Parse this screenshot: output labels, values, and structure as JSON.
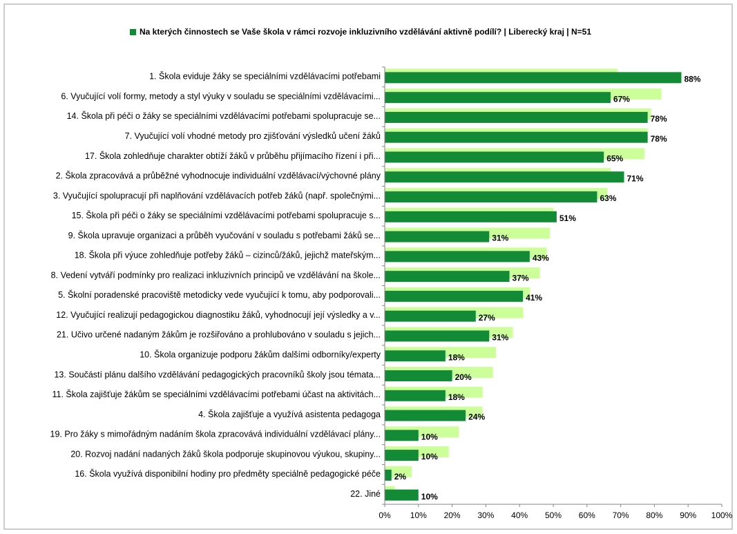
{
  "chart_data": {
    "type": "bar",
    "orientation": "horizontal",
    "categories": [
      "1. Škola eviduje žáky se speciálními vzdělávacími potřebami",
      "6. Vyučující volí formy, metody a styl výuky v souladu se speciálními vzdělávacími...",
      "14. Škola při péči o žáky se speciálními vzdělávacími potřebami spolupracuje se...",
      "7. Vyučující volí vhodné metody pro zjišťování výsledků učení žáků",
      "17. Škola zohledňuje charakter obtíží žáků v průběhu přijímacího řízení i při...",
      "2. Škola zpracovává a průběžné vyhodnocuje individuální vzdělávací/výchovné plány",
      "3. Vyučující spolupracují při naplňování vzdělávacích potřeb žáků (např. společnými...",
      "15. Škola při péči o žáky se speciálními vzdělávacími potřebami spolupracuje s...",
      "9. Škola upravuje organizaci a průběh vyučování v souladu s potřebami žáků se...",
      "18. Škola při výuce zohledňuje potřeby žáků – cizinců/žáků, jejichž mateřským...",
      "8. Vedení vytváří podmínky pro realizaci inkluzivních principů ve vzdělávání na škole...",
      "5. Školní poradenské pracoviště metodicky vede vyučující k tomu, aby podporovali...",
      "12. Vyučující realizují pedagogickou diagnostiku žáků, vyhodnocují její výsledky a v...",
      "21. Učivo určené nadaným žákům je rozšiřováno a prohlubováno v souladu s jejich...",
      "10. Škola organizuje podporu žákům dalšími odborníky/experty",
      "13. Součástí plánu dalšího vzdělávání pedagogických pracovníků školy jsou témata...",
      "11. Škola zajišťuje žákům se speciálními vzdělávacími potřebami účast na aktivitách...",
      "4. Škola zajišťuje a využívá asistenta pedagoga",
      "19. Pro žáky s mimořádným nadáním škola zpracovává individuální vzdělávací plány...",
      "20. Rozvoj nadání nadaných žáků škola podporuje skupinovou výukou, skupiny...",
      "16. Škola využívá disponibilní hodiny pro předměty speciálně pedagogické péče",
      "22. Jiné"
    ],
    "series": [
      {
        "color": "#ccff99",
        "values": [
          69,
          82,
          79,
          78,
          77,
          67,
          66,
          50,
          49,
          48,
          46,
          43,
          41,
          38,
          33,
          32,
          29,
          29,
          22,
          19,
          8,
          3
        ]
      },
      {
        "name": "Na kterých činnostech se Vaše škola v rámci rozvoje inkluzivního vzdělávání aktivně podílí?  | Liberecký kraj | N=51",
        "color": "#138a36",
        "values": [
          88,
          67,
          78,
          78,
          65,
          71,
          63,
          51,
          31,
          43,
          37,
          41,
          27,
          31,
          18,
          20,
          18,
          24,
          10,
          10,
          2,
          10
        ],
        "value_labels": [
          "88%",
          "67%",
          "78%",
          "78%",
          "65%",
          "71%",
          "63%",
          "51%",
          "31%",
          "43%",
          "37%",
          "41%",
          "27%",
          "31%",
          "18%",
          "20%",
          "18%",
          "24%",
          "10%",
          "10%",
          "2%",
          "10%"
        ]
      }
    ],
    "xlim": [
      0,
      100
    ],
    "xticks": [
      {
        "value": 0,
        "label": "0%"
      },
      {
        "value": 10,
        "label": "10%"
      },
      {
        "value": 20,
        "label": "20%"
      },
      {
        "value": 30,
        "label": "30%"
      },
      {
        "value": 40,
        "label": "40%"
      },
      {
        "value": 50,
        "label": "50%"
      },
      {
        "value": 60,
        "label": "60%"
      },
      {
        "value": 70,
        "label": "70%"
      },
      {
        "value": 80,
        "label": "80%"
      },
      {
        "value": 90,
        "label": "90%"
      },
      {
        "value": 100,
        "label": "100%"
      }
    ],
    "legend": "top"
  }
}
